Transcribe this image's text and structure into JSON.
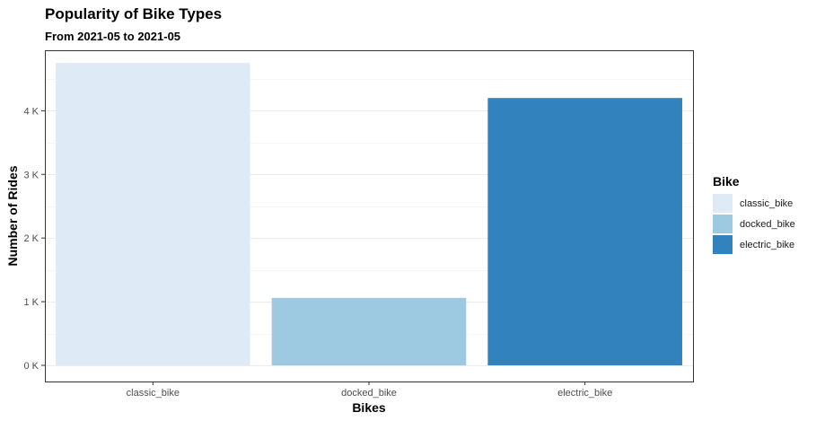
{
  "chart_data": {
    "type": "bar",
    "title": "Popularity of Bike Types",
    "subtitle": "From 2021-05 to 2021-05",
    "xlabel": "Bikes",
    "ylabel": "Number of Rides",
    "categories": [
      "classic_bike",
      "docked_bike",
      "electric_bike"
    ],
    "values": [
      4750,
      1060,
      4200
    ],
    "colors": [
      "#DEEBF7",
      "#9ECAE1",
      "#3182BD"
    ],
    "ylim": [
      0,
      4950
    ],
    "yticks": [
      0,
      1000,
      2000,
      3000,
      4000
    ],
    "ytick_labels": [
      "0 K",
      "1 K",
      "2 K",
      "3 K",
      "4 K"
    ],
    "grid": true,
    "legend": {
      "title": "Bike",
      "position": "right",
      "entries": [
        "classic_bike",
        "docked_bike",
        "electric_bike"
      ]
    }
  }
}
